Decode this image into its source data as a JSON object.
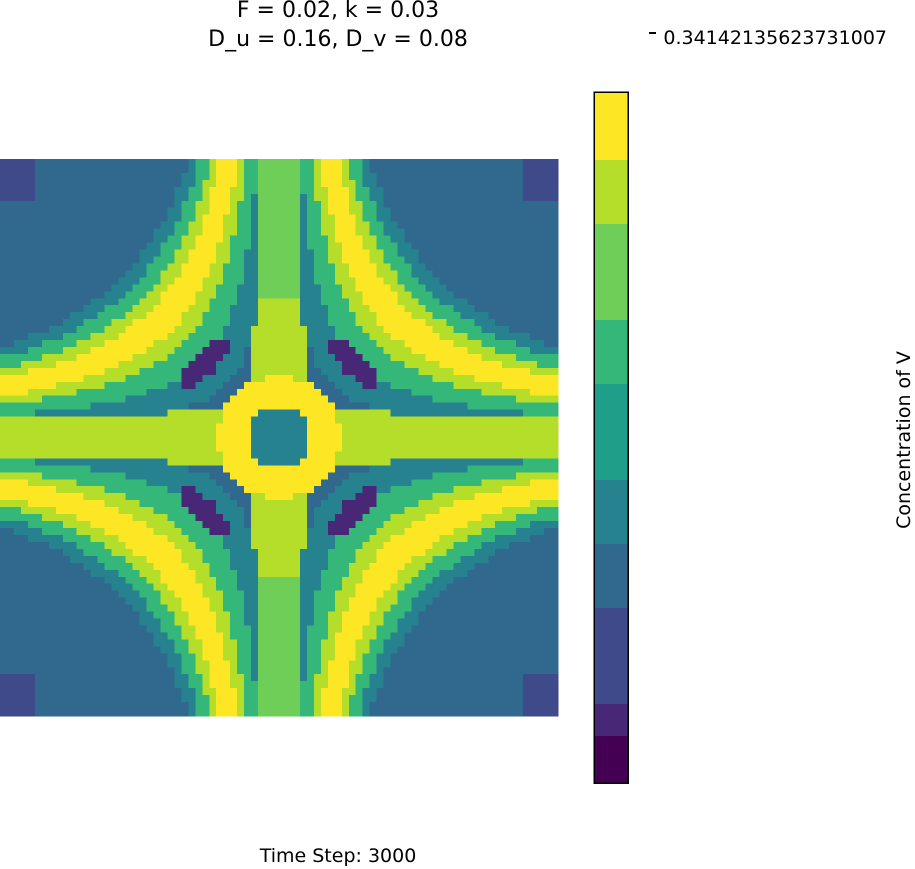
{
  "title_line1": "F = 0.02, k = 0.03",
  "title_line2": "D_u = 0.16, D_v = 0.08",
  "corner_value": "0.34142135623731007",
  "footer": "Time Step: 3000",
  "chart_data": {
    "type": "heatmap",
    "title": "F = 0.02, k = 0.03\nD_u = 0.16, D_v = 0.08",
    "xlabel": "",
    "ylabel": "",
    "colorbar_label": "Concentration of V",
    "grid": false,
    "legend": "colorbar-right",
    "levels": [
      {
        "color": "#ffffff"
      },
      {
        "color": "#440154"
      },
      {
        "color": "#482777"
      },
      {
        "color": "#3e4a89"
      },
      {
        "color": "#31688e"
      },
      {
        "color": "#26828e"
      },
      {
        "color": "#1f9e89"
      },
      {
        "color": "#35b779"
      },
      {
        "color": "#6ece58"
      },
      {
        "color": "#b5de2b"
      },
      {
        "color": "#fde725"
      }
    ],
    "pattern": "four-fold symmetric reaction-diffusion field: central cross with high V concentration, a low-V ring at the center, and curved high-V bands toward each corner"
  }
}
